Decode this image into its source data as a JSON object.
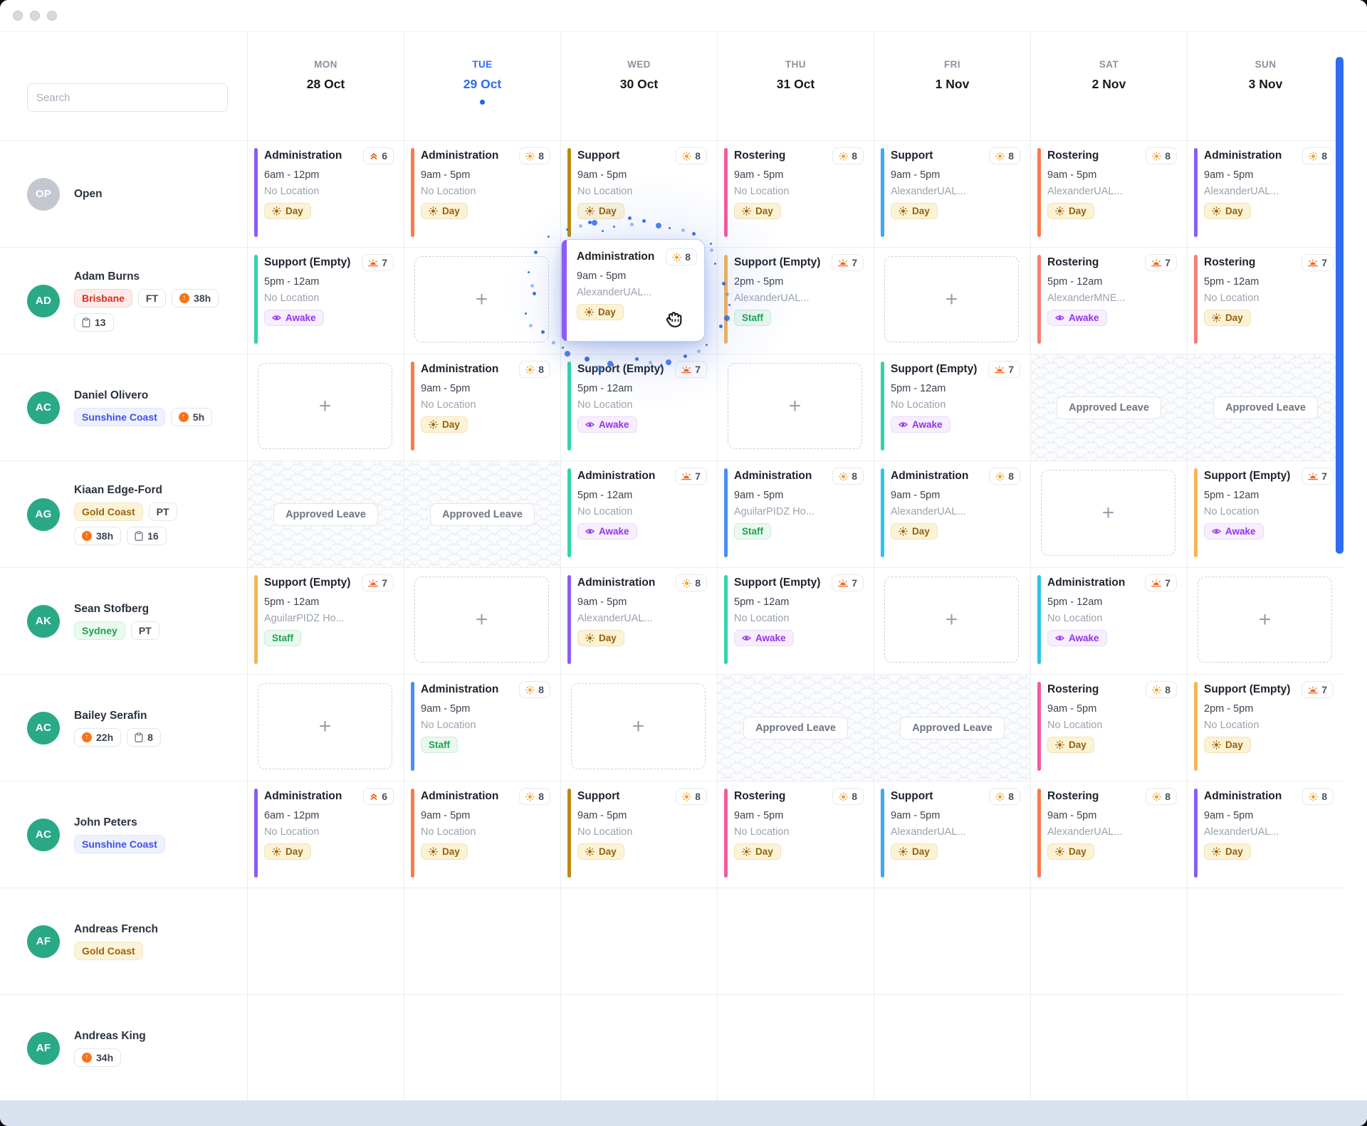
{
  "search": {
    "placeholder": "Search"
  },
  "labels": {
    "approved_leave": "Approved Leave",
    "add_shift": "+"
  },
  "palette": {
    "purple": "#8b5cf6",
    "orange": "#fb7a4a",
    "olive": "#bb8a0c",
    "pink": "#f35a9f",
    "skyblue": "#3fa9f6",
    "blue": "#4a8ef5",
    "cyan": "#2cc5ec",
    "teal": "#2fd4ac",
    "amber": "#f6b457",
    "salmon": "#f87e76",
    "today_blue": "#2e6bf0",
    "scrollbar_blue": "#2e6cf0",
    "avatar_green": "#2aa987",
    "avatar_gray": "#c3c8d0"
  },
  "days": [
    {
      "dow": "MON",
      "date": "28 Oct",
      "today": false
    },
    {
      "dow": "TUE",
      "date": "29 Oct",
      "today": true
    },
    {
      "dow": "WED",
      "date": "30 Oct",
      "today": false
    },
    {
      "dow": "THU",
      "date": "31 Oct",
      "today": false
    },
    {
      "dow": "FRI",
      "date": "1 Nov",
      "today": false
    },
    {
      "dow": "SAT",
      "date": "2 Nov",
      "today": false
    },
    {
      "dow": "SUN",
      "date": "3 Nov",
      "today": false
    }
  ],
  "rows": [
    {
      "name": "Open",
      "initials": "OP",
      "avatar": "gray",
      "badges": [],
      "cells": [
        {
          "kind": "shift",
          "title": "Administration",
          "count": 6,
          "count_icon": "chevrons",
          "time": "6am - 12pm",
          "location": "No Location",
          "tag": "Day",
          "tag_kind": "day",
          "accent": "purple"
        },
        {
          "kind": "shift",
          "title": "Administration",
          "count": 8,
          "count_icon": "sun",
          "time": "9am - 5pm",
          "location": "No Location",
          "tag": "Day",
          "tag_kind": "day",
          "accent": "orange"
        },
        {
          "kind": "shift",
          "title": "Support",
          "count": 8,
          "count_icon": "sun",
          "time": "9am - 5pm",
          "location": "No Location",
          "tag": "Day",
          "tag_kind": "day",
          "accent": "olive"
        },
        {
          "kind": "shift",
          "title": "Rostering",
          "count": 8,
          "count_icon": "sun",
          "time": "9am - 5pm",
          "location": "No Location",
          "tag": "Day",
          "tag_kind": "day",
          "accent": "pink"
        },
        {
          "kind": "shift",
          "title": "Support",
          "count": 8,
          "count_icon": "sun",
          "time": "9am - 5pm",
          "location": "AlexanderUAL...",
          "tag": "Day",
          "tag_kind": "day",
          "accent": "skyblue"
        },
        {
          "kind": "shift",
          "title": "Rostering",
          "count": 8,
          "count_icon": "sun",
          "time": "9am - 5pm",
          "location": "AlexanderUAL...",
          "tag": "Day",
          "tag_kind": "day",
          "accent": "orange"
        },
        {
          "kind": "shift",
          "title": "Administration",
          "count": 8,
          "count_icon": "sun",
          "time": "9am - 5pm",
          "location": "AlexanderUAL...",
          "tag": "Day",
          "tag_kind": "day",
          "accent": "purple"
        }
      ]
    },
    {
      "name": "Adam Burns",
      "initials": "AD",
      "avatar": "green",
      "badges": [
        [
          {
            "label": "Brisbane",
            "kind": "loc-red"
          },
          {
            "label": "FT",
            "kind": "plain"
          },
          {
            "label": "38h",
            "kind": "hours"
          }
        ],
        [
          {
            "label": "13",
            "kind": "clip"
          }
        ]
      ],
      "cells": [
        {
          "kind": "shift",
          "title": "Support (Empty)",
          "count": 7,
          "count_icon": "sunset",
          "time": "5pm - 12am",
          "location": "No Location",
          "tag": "Awake",
          "tag_kind": "awake",
          "accent": "teal"
        },
        {
          "kind": "empty"
        },
        {
          "kind": "blank"
        },
        {
          "kind": "shift",
          "title": "Support (Empty)",
          "count": 7,
          "count_icon": "sunset",
          "time": "2pm - 5pm",
          "location": "AlexanderUAL...",
          "tag": "Staff",
          "tag_kind": "staff",
          "accent": "amber"
        },
        {
          "kind": "empty"
        },
        {
          "kind": "shift",
          "title": "Rostering",
          "count": 7,
          "count_icon": "sunset",
          "time": "5pm - 12am",
          "location": "AlexanderMNE...",
          "tag": "Awake",
          "tag_kind": "awake",
          "accent": "salmon"
        },
        {
          "kind": "shift",
          "title": "Rostering",
          "count": 7,
          "count_icon": "sunset",
          "time": "5pm - 12am",
          "location": "No Location",
          "tag": "Day",
          "tag_kind": "day",
          "accent": "salmon"
        }
      ]
    },
    {
      "name": "Daniel Olivero",
      "initials": "AC",
      "avatar": "green",
      "badges": [
        [
          {
            "label": "Sunshine Coast",
            "kind": "loc-blue"
          },
          {
            "label": "5h",
            "kind": "hours"
          }
        ]
      ],
      "cells": [
        {
          "kind": "empty"
        },
        {
          "kind": "shift",
          "title": "Administration",
          "count": 8,
          "count_icon": "sun",
          "time": "9am - 5pm",
          "location": "No Location",
          "tag": "Day",
          "tag_kind": "day",
          "accent": "orange"
        },
        {
          "kind": "shift",
          "title": "Support (Empty)",
          "count": 7,
          "count_icon": "sunset",
          "time": "5pm - 12am",
          "location": "No Location",
          "tag": "Awake",
          "tag_kind": "awake",
          "accent": "teal"
        },
        {
          "kind": "empty"
        },
        {
          "kind": "shift",
          "title": "Support (Empty)",
          "count": 7,
          "count_icon": "sunset",
          "time": "5pm - 12am",
          "location": "No Location",
          "tag": "Awake",
          "tag_kind": "awake",
          "accent": "teal"
        },
        {
          "kind": "leave"
        },
        {
          "kind": "leave"
        }
      ]
    },
    {
      "name": "Kiaan Edge-Ford",
      "initials": "AG",
      "avatar": "green",
      "badges": [
        [
          {
            "label": "Gold Coast",
            "kind": "loc-amber"
          },
          {
            "label": "PT",
            "kind": "plain"
          }
        ],
        [
          {
            "label": "38h",
            "kind": "hours"
          },
          {
            "label": "16",
            "kind": "clip"
          }
        ]
      ],
      "cells": [
        {
          "kind": "leave"
        },
        {
          "kind": "leave"
        },
        {
          "kind": "shift",
          "title": "Administration",
          "count": 7,
          "count_icon": "sunset",
          "time": "5pm - 12am",
          "location": "No Location",
          "tag": "Awake",
          "tag_kind": "awake",
          "accent": "teal"
        },
        {
          "kind": "shift",
          "title": "Administration",
          "count": 8,
          "count_icon": "sun",
          "time": "9am - 5pm",
          "location": "AguilarPIDZ Ho...",
          "tag": "Staff",
          "tag_kind": "staff",
          "accent": "blue"
        },
        {
          "kind": "shift",
          "title": "Administration",
          "count": 8,
          "count_icon": "sun",
          "time": "9am - 5pm",
          "location": "AlexanderUAL...",
          "tag": "Day",
          "tag_kind": "day",
          "accent": "cyan"
        },
        {
          "kind": "empty"
        },
        {
          "kind": "shift",
          "title": "Support (Empty)",
          "count": 7,
          "count_icon": "sunset",
          "time": "5pm - 12am",
          "location": "No Location",
          "tag": "Awake",
          "tag_kind": "awake",
          "accent": "amber"
        }
      ]
    },
    {
      "name": "Sean Stofberg",
      "initials": "AK",
      "avatar": "green",
      "badges": [
        [
          {
            "label": "Sydney",
            "kind": "loc-green"
          },
          {
            "label": "PT",
            "kind": "plain"
          }
        ]
      ],
      "cells": [
        {
          "kind": "shift",
          "title": "Support (Empty)",
          "count": 7,
          "count_icon": "sunset",
          "time": "5pm - 12am",
          "location": "AguilarPIDZ Ho...",
          "tag": "Staff",
          "tag_kind": "staff",
          "accent": "amber"
        },
        {
          "kind": "empty"
        },
        {
          "kind": "shift",
          "title": "Administration",
          "count": 8,
          "count_icon": "sun",
          "time": "9am - 5pm",
          "location": "AlexanderUAL...",
          "tag": "Day",
          "tag_kind": "day",
          "accent": "purple"
        },
        {
          "kind": "shift",
          "title": "Support (Empty)",
          "count": 7,
          "count_icon": "sunset",
          "time": "5pm - 12am",
          "location": "No Location",
          "tag": "Awake",
          "tag_kind": "awake",
          "accent": "teal"
        },
        {
          "kind": "empty"
        },
        {
          "kind": "shift",
          "title": "Administration",
          "count": 7,
          "count_icon": "sunset",
          "time": "5pm - 12am",
          "location": "No Location",
          "tag": "Awake",
          "tag_kind": "awake",
          "accent": "cyan"
        },
        {
          "kind": "empty"
        }
      ]
    },
    {
      "name": "Bailey Serafin",
      "initials": "AC",
      "avatar": "green",
      "badges": [
        [
          {
            "label": "22h",
            "kind": "hours"
          },
          {
            "label": "8",
            "kind": "clip"
          }
        ]
      ],
      "cells": [
        {
          "kind": "empty"
        },
        {
          "kind": "shift",
          "title": "Administration",
          "count": 8,
          "count_icon": "sun",
          "time": "9am - 5pm",
          "location": "No Location",
          "tag": "Staff",
          "tag_kind": "staff",
          "accent": "blue"
        },
        {
          "kind": "empty"
        },
        {
          "kind": "leave"
        },
        {
          "kind": "leave"
        },
        {
          "kind": "shift",
          "title": "Rostering",
          "count": 8,
          "count_icon": "sun",
          "time": "9am - 5pm",
          "location": "No Location",
          "tag": "Day",
          "tag_kind": "day",
          "accent": "pink"
        },
        {
          "kind": "shift",
          "title": "Support (Empty)",
          "count": 7,
          "count_icon": "sunset",
          "time": "2pm - 5pm",
          "location": "No Location",
          "tag": "Day",
          "tag_kind": "day",
          "accent": "amber"
        }
      ]
    },
    {
      "name": "John Peters",
      "initials": "AC",
      "avatar": "green",
      "badges": [
        [
          {
            "label": "Sunshine Coast",
            "kind": "loc-blue"
          }
        ]
      ],
      "cells": [
        {
          "kind": "shift",
          "title": "Administration",
          "count": 6,
          "count_icon": "chevrons",
          "time": "6am - 12pm",
          "location": "No Location",
          "tag": "Day",
          "tag_kind": "day",
          "accent": "purple"
        },
        {
          "kind": "shift",
          "title": "Administration",
          "count": 8,
          "count_icon": "sun",
          "time": "9am - 5pm",
          "location": "No Location",
          "tag": "Day",
          "tag_kind": "day",
          "accent": "orange"
        },
        {
          "kind": "shift",
          "title": "Support",
          "count": 8,
          "count_icon": "sun",
          "time": "9am - 5pm",
          "location": "No Location",
          "tag": "Day",
          "tag_kind": "day",
          "accent": "olive"
        },
        {
          "kind": "shift",
          "title": "Rostering",
          "count": 8,
          "count_icon": "sun",
          "time": "9am - 5pm",
          "location": "No Location",
          "tag": "Day",
          "tag_kind": "day",
          "accent": "pink"
        },
        {
          "kind": "shift",
          "title": "Support",
          "count": 8,
          "count_icon": "sun",
          "time": "9am - 5pm",
          "location": "AlexanderUAL...",
          "tag": "Day",
          "tag_kind": "day",
          "accent": "skyblue"
        },
        {
          "kind": "shift",
          "title": "Rostering",
          "count": 8,
          "count_icon": "sun",
          "time": "9am - 5pm",
          "location": "AlexanderUAL...",
          "tag": "Day",
          "tag_kind": "day",
          "accent": "orange"
        },
        {
          "kind": "shift",
          "title": "Administration",
          "count": 8,
          "count_icon": "sun",
          "time": "9am - 5pm",
          "location": "AlexanderUAL...",
          "tag": "Day",
          "tag_kind": "day",
          "accent": "purple"
        }
      ]
    },
    {
      "name": "Andreas French",
      "initials": "AF",
      "avatar": "green",
      "badges": [
        [
          {
            "label": "Gold Coast",
            "kind": "loc-amber"
          }
        ]
      ],
      "cells": [
        {
          "kind": "blank"
        },
        {
          "kind": "blank"
        },
        {
          "kind": "blank"
        },
        {
          "kind": "blank"
        },
        {
          "kind": "blank"
        },
        {
          "kind": "blank"
        },
        {
          "kind": "blank"
        }
      ]
    },
    {
      "name": "Andreas King",
      "initials": "AF",
      "avatar": "green",
      "badges": [
        [
          {
            "label": "34h",
            "kind": "hours"
          }
        ]
      ],
      "cells": [
        {
          "kind": "blank"
        },
        {
          "kind": "blank"
        },
        {
          "kind": "blank"
        },
        {
          "kind": "blank"
        },
        {
          "kind": "blank"
        },
        {
          "kind": "blank"
        },
        {
          "kind": "blank"
        }
      ]
    }
  ],
  "drag_card": {
    "title": "Administration",
    "count": 8,
    "count_icon": "sun",
    "time": "9am - 5pm",
    "location": "AlexanderUAL...",
    "tag": "Day",
    "tag_kind": "day",
    "accent": "purple"
  }
}
